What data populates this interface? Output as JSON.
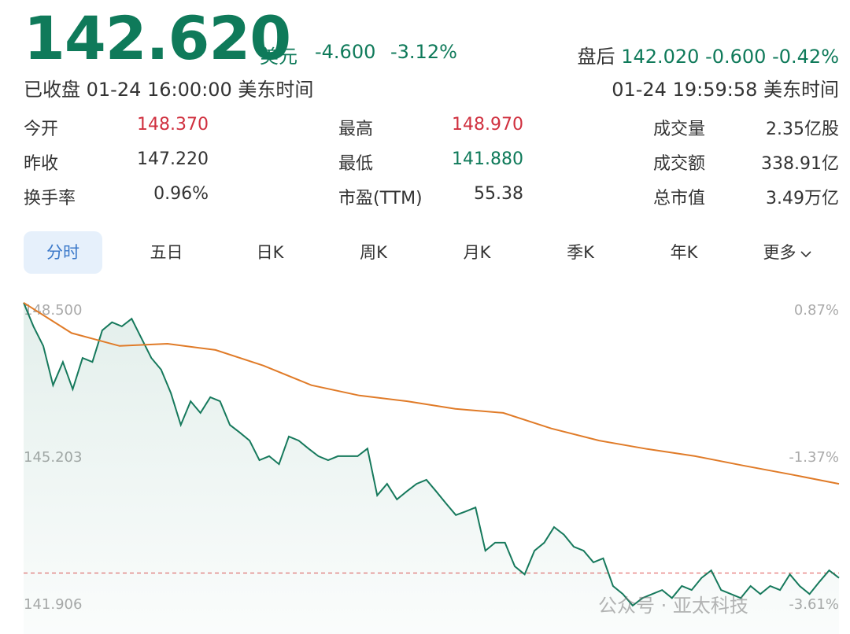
{
  "header": {
    "price": "142.620",
    "currency": "美元",
    "change": "-4.600",
    "change_pct": "-3.12%",
    "after_hours": {
      "label": "盘后",
      "price": "142.020",
      "change": "-0.600",
      "change_pct": "-0.42%"
    },
    "status": "已收盘 01-24 16:00:00 美东时间",
    "after_hours_time": "01-24 19:59:58 美东时间"
  },
  "stats": [
    [
      {
        "label": "今开",
        "value": "148.370",
        "color": "#d0303f"
      },
      {
        "label": "最高",
        "value": "148.970",
        "color": "#d0303f"
      },
      {
        "label": "成交量",
        "value": "2.35亿股",
        "color": "#333333"
      }
    ],
    [
      {
        "label": "昨收",
        "value": "147.220",
        "color": "#333333"
      },
      {
        "label": "最低",
        "value": "141.880",
        "color": "#0f7a5a"
      },
      {
        "label": "成交额",
        "value": "338.91亿",
        "color": "#333333"
      }
    ],
    [
      {
        "label": "换手率",
        "value": "0.96%",
        "color": "#333333"
      },
      {
        "label": "市盈(TTM)",
        "value": "55.38",
        "color": "#333333"
      },
      {
        "label": "总市值",
        "value": "3.49万亿",
        "color": "#333333"
      }
    ]
  ],
  "tabs": [
    "分时",
    "五日",
    "日K",
    "周K",
    "月K",
    "季K",
    "年K",
    "更多"
  ],
  "watermark": "公众号 · 亚太科技",
  "chart_data": {
    "type": "line",
    "ylim": [
      141.906,
      148.5
    ],
    "yticks": [
      {
        "value": 148.5,
        "label": "148.500"
      },
      {
        "value": 145.203,
        "label": "145.203"
      },
      {
        "value": 141.906,
        "label": "141.906"
      }
    ],
    "y2lim": [
      -3.61,
      0.87
    ],
    "y2ticks": [
      {
        "value": 0.87,
        "label": "0.87%"
      },
      {
        "value": -1.37,
        "label": "-1.37%"
      },
      {
        "value": -3.61,
        "label": "-3.61%"
      }
    ],
    "reference_line": {
      "value": 142.62,
      "color": "#e57373"
    },
    "series": [
      {
        "color": "#16795c",
        "area": true,
        "values": [
          148.68,
          148.15,
          147.71,
          146.83,
          147.35,
          146.74,
          147.44,
          147.35,
          148.06,
          148.24,
          148.15,
          148.32,
          147.88,
          147.44,
          147.18,
          146.65,
          145.94,
          146.47,
          146.21,
          146.56,
          146.47,
          145.94,
          145.77,
          145.59,
          145.15,
          145.24,
          145.06,
          145.68,
          145.59,
          145.41,
          145.24,
          145.15,
          145.24,
          145.24,
          145.24,
          145.41,
          144.36,
          144.62,
          144.27,
          144.45,
          144.62,
          144.71,
          144.45,
          144.18,
          143.92,
          144.0,
          144.09,
          143.12,
          143.3,
          143.3,
          142.77,
          142.59,
          143.12,
          143.3,
          143.65,
          143.48,
          143.21,
          143.12,
          142.86,
          142.95,
          142.33,
          142.15,
          141.89,
          142.06,
          142.15,
          142.24,
          142.06,
          142.33,
          142.24,
          142.51,
          142.68,
          142.24,
          142.15,
          142.06,
          142.33,
          142.15,
          142.33,
          142.24,
          142.59,
          142.33,
          142.15,
          142.42,
          142.68,
          142.51
        ]
      },
      {
        "color": "#e07b28",
        "area": false,
        "values": [
          148.68,
          148.0,
          147.71,
          147.76,
          147.62,
          147.27,
          146.83,
          146.6,
          146.47,
          146.3,
          146.21,
          145.86,
          145.59,
          145.4,
          145.24,
          145.03,
          144.83,
          144.62
        ]
      }
    ]
  }
}
